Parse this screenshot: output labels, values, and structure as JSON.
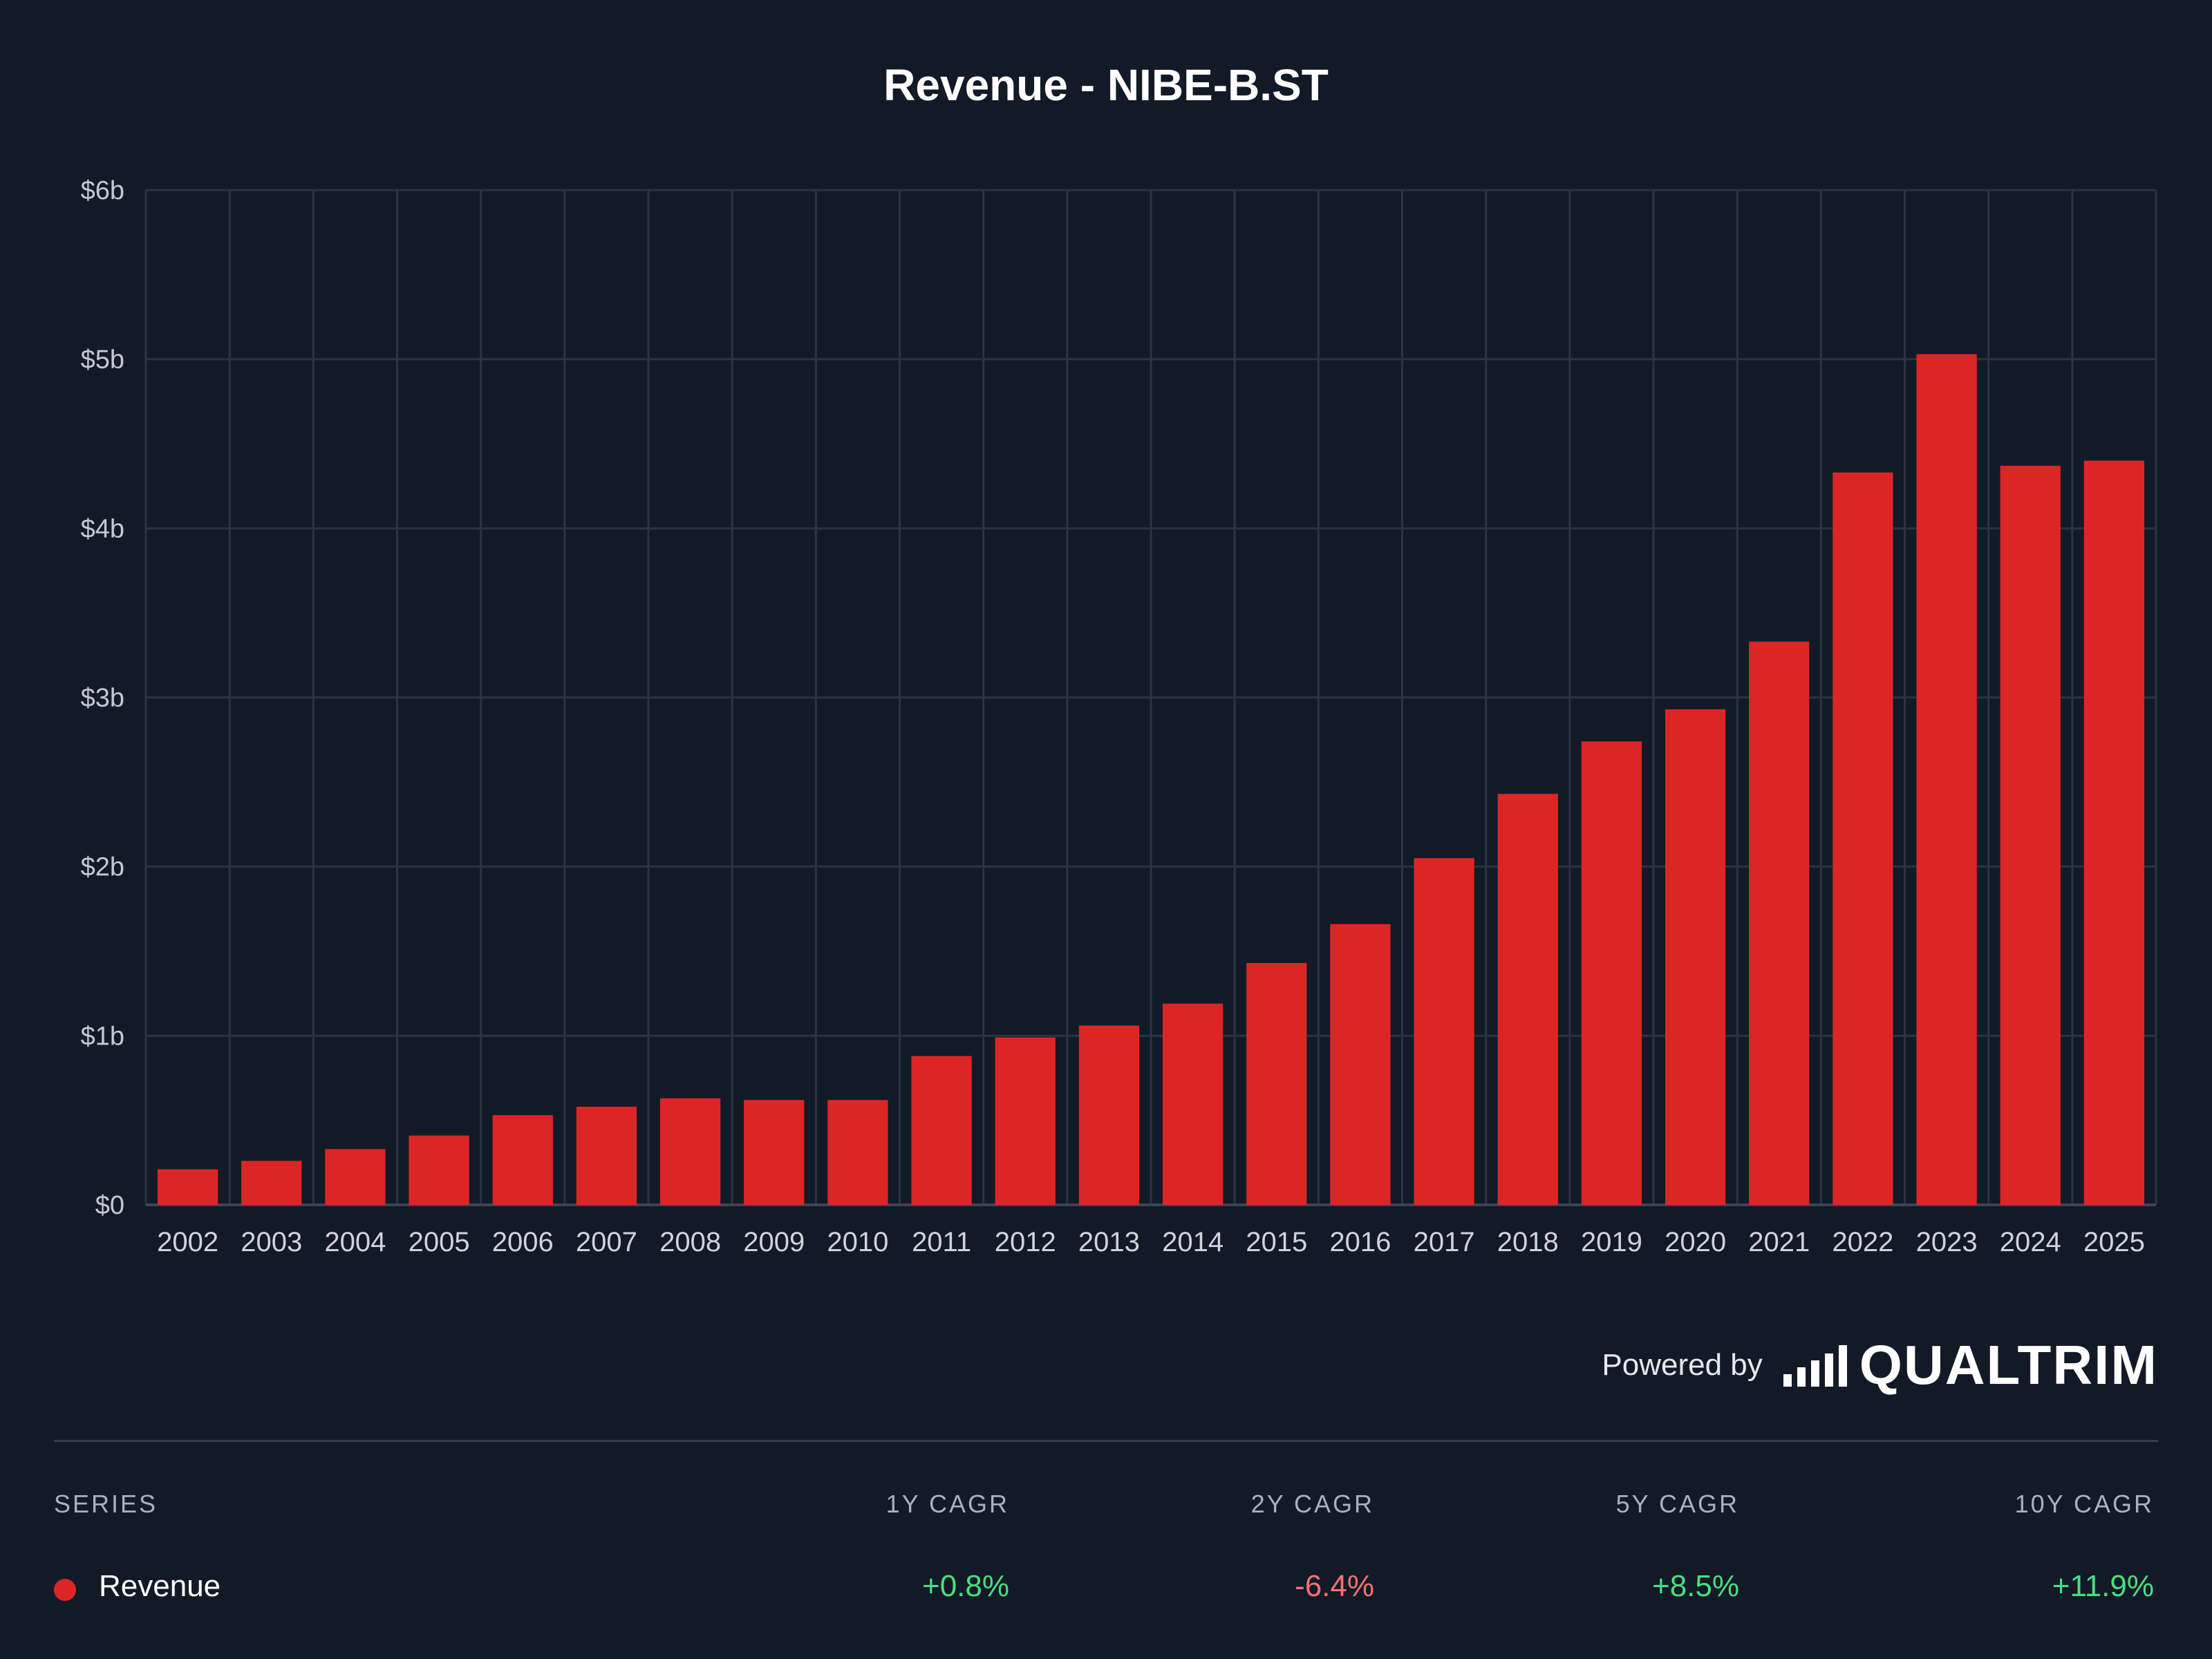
{
  "chart_data": {
    "type": "bar",
    "title": "Revenue - NIBE-B.ST",
    "categories": [
      "2002",
      "2003",
      "2004",
      "2005",
      "2006",
      "2007",
      "2008",
      "2009",
      "2010",
      "2011",
      "2012",
      "2013",
      "2014",
      "2015",
      "2016",
      "2017",
      "2018",
      "2019",
      "2020",
      "2021",
      "2022",
      "2023",
      "2024",
      "2025"
    ],
    "series": [
      {
        "name": "Revenue",
        "values": [
          0.21,
          0.26,
          0.33,
          0.41,
          0.53,
          0.58,
          0.63,
          0.62,
          0.62,
          0.88,
          0.99,
          1.06,
          1.19,
          1.43,
          1.66,
          2.05,
          2.43,
          2.74,
          2.93,
          3.33,
          4.33,
          5.03,
          4.37,
          4.4
        ],
        "color": "#dc2626"
      }
    ],
    "yunit": "billions USD",
    "ylim": [
      0,
      6
    ],
    "yticks": [
      0,
      1,
      2,
      3,
      4,
      5,
      6
    ],
    "ytick_labels": [
      "$0",
      "$1b",
      "$2b",
      "$3b",
      "$4b",
      "$5b",
      "$6b"
    ],
    "xlabel": "",
    "ylabel": "",
    "grid": true
  },
  "footer": {
    "powered_by": "Powered by",
    "brand": "QUALTRIM"
  },
  "table": {
    "headers": {
      "series": "SERIES",
      "cagr_1y": "1Y CAGR",
      "cagr_2y": "2Y CAGR",
      "cagr_5y": "5Y CAGR",
      "cagr_10y": "10Y CAGR"
    },
    "row": {
      "name": "Revenue",
      "dot_color": "#dc2626",
      "cagr_1y": "+0.8%",
      "cagr_2y": "-6.4%",
      "cagr_5y": "+8.5%",
      "cagr_10y": "+11.9%",
      "positive_color": "#4ade80",
      "negative_color": "#f87171"
    }
  },
  "colors": {
    "background": "#131a27",
    "grid": "#2c3342",
    "axis": "#3d4454"
  }
}
